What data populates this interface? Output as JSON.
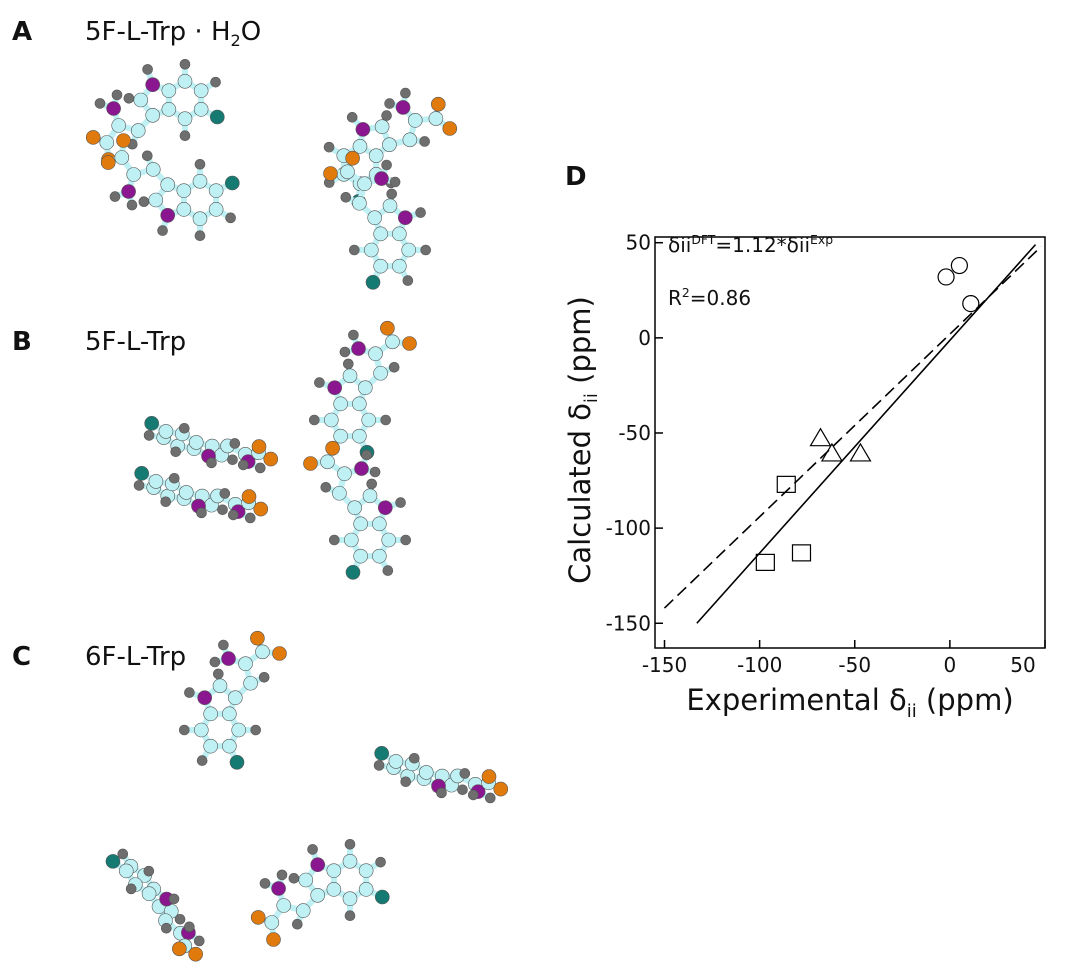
{
  "panels": [
    {
      "label": "A",
      "caption": [
        "5F-L-Trp · H",
        "2",
        "O"
      ]
    },
    {
      "label": "B",
      "caption": [
        "5F-L-Trp"
      ]
    },
    {
      "label": "C",
      "caption": [
        "6F-L-Trp"
      ]
    }
  ],
  "chart_data": {
    "type": "scatter",
    "panel_label": "D",
    "xlabel": [
      "Experimental  δ",
      "ii",
      " (ppm)"
    ],
    "ylabel": [
      "Calculated δ",
      "ii",
      " (ppm)"
    ],
    "annotations": [
      [
        "δii",
        "DFT",
        "=1.12*δii",
        "Exp"
      ],
      [
        "R",
        "2",
        "=0.86"
      ]
    ],
    "xlim": [
      -155,
      50
    ],
    "ylim": [
      -163,
      53
    ],
    "xticks": [
      -150,
      -100,
      -50,
      0,
      50
    ],
    "yticks": [
      -150,
      -100,
      -50,
      0,
      50
    ],
    "series": [
      {
        "marker": "circle",
        "color": "#000000",
        "x": [
          -2,
          5,
          11
        ],
        "y": [
          32,
          38,
          18
        ]
      },
      {
        "marker": "triangle",
        "color": "#000000",
        "x": [
          -68,
          -62,
          -47
        ],
        "y": [
          -53,
          -61,
          -61
        ]
      },
      {
        "marker": "square",
        "color": "#000000",
        "x": [
          -86,
          -97,
          -78
        ],
        "y": [
          -77,
          -118,
          -113
        ]
      }
    ],
    "lines": [
      {
        "style": "solid",
        "color": "#000000",
        "x": [
          -133,
          45
        ],
        "y": [
          -150,
          49
        ]
      },
      {
        "style": "dashed",
        "color": "#000000",
        "x": [
          -150,
          48
        ],
        "y": [
          -142,
          48
        ]
      }
    ]
  }
}
